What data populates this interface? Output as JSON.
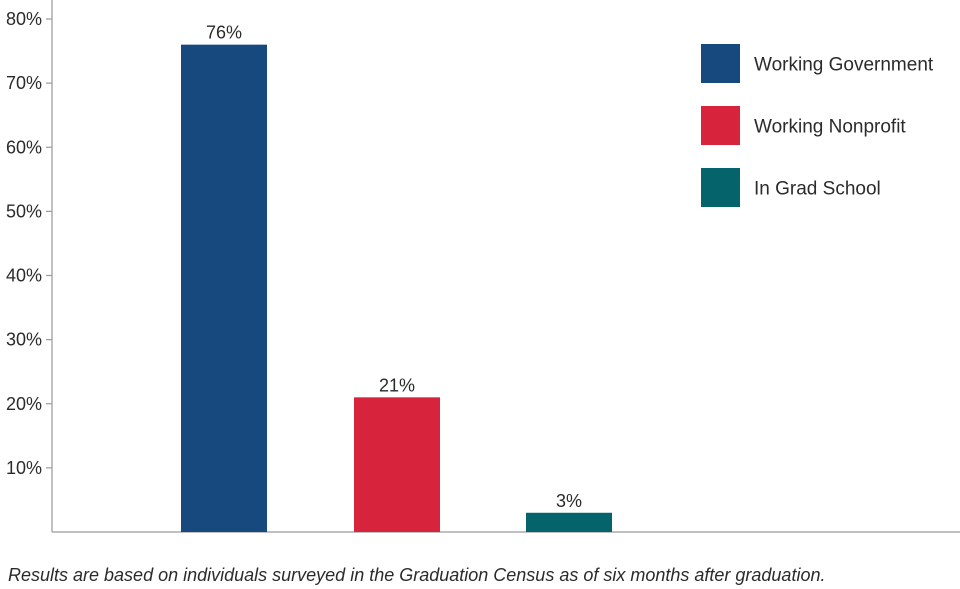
{
  "chart_data": {
    "type": "bar",
    "categories": [
      "Working Government",
      "Working Nonprofit",
      "In Grad School"
    ],
    "values": [
      76,
      21,
      3
    ],
    "value_labels": [
      "76%",
      "21%",
      "3%"
    ],
    "colors": [
      "#17497f",
      "#d7233b",
      "#05636b"
    ],
    "ylim": [
      0,
      80
    ],
    "yticks": [
      10,
      20,
      30,
      40,
      50,
      60,
      70,
      80
    ],
    "ytick_labels": [
      "10%",
      "20%",
      "30%",
      "40%",
      "50%",
      "60%",
      "70%",
      "80%"
    ],
    "grid": false,
    "legend": {
      "placement": "top-right",
      "entries": [
        "Working Government",
        "Working Nonprofit",
        "In Grad School"
      ]
    }
  },
  "footnote": "Results are based on individuals surveyed in the Graduation Census as of six months after graduation."
}
